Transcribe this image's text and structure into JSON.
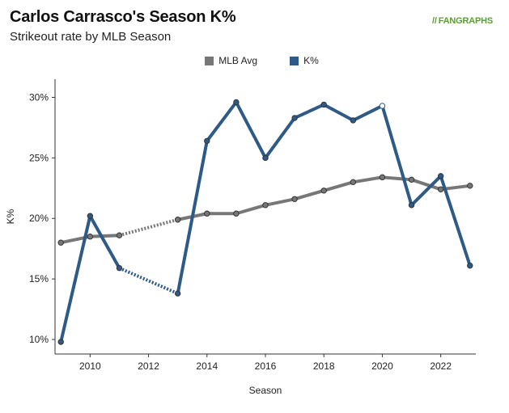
{
  "header": {
    "title": "Carlos Carrasco's Season K%",
    "subtitle": "Strikeout rate by MLB Season",
    "brand_mark": "//",
    "brand_fan": "FAN",
    "brand_graphs": "GRAPHS"
  },
  "colors": {
    "mlb_avg": "#777777",
    "k_pct": "#2e5a87",
    "brand": "#5aa02c",
    "axis": "#333333"
  },
  "chart_data": {
    "type": "line",
    "title": "Carlos Carrasco's Season K%",
    "subtitle": "Strikeout rate by MLB Season",
    "xlabel": "Season",
    "ylabel": "K%",
    "xlim": [
      2008.8,
      2023.2
    ],
    "ylim": [
      8.8,
      31.5
    ],
    "x_ticks": [
      2010,
      2012,
      2014,
      2016,
      2018,
      2020,
      2022
    ],
    "y_ticks": [
      10,
      15,
      20,
      25,
      30
    ],
    "y_tick_labels": [
      "10%",
      "15%",
      "20%",
      "25%",
      "30%"
    ],
    "legend_position": "top-center",
    "grid": false,
    "series": [
      {
        "name": "MLB Avg",
        "color": "#777777",
        "points": [
          {
            "x": 2009,
            "y": 18.0
          },
          {
            "x": 2010,
            "y": 18.5
          },
          {
            "x": 2011,
            "y": 18.6
          },
          {
            "x": 2013,
            "y": 19.9
          },
          {
            "x": 2014,
            "y": 20.4
          },
          {
            "x": 2015,
            "y": 20.4
          },
          {
            "x": 2016,
            "y": 21.1
          },
          {
            "x": 2017,
            "y": 21.6
          },
          {
            "x": 2018,
            "y": 22.3
          },
          {
            "x": 2019,
            "y": 23.0
          },
          {
            "x": 2020,
            "y": 23.4
          },
          {
            "x": 2021,
            "y": 23.2
          },
          {
            "x": 2022,
            "y": 22.4
          },
          {
            "x": 2023,
            "y": 22.7
          }
        ]
      },
      {
        "name": "K%",
        "color": "#2e5a87",
        "points": [
          {
            "x": 2009,
            "y": 9.8
          },
          {
            "x": 2010,
            "y": 20.2
          },
          {
            "x": 2011,
            "y": 15.9
          },
          {
            "x": 2013,
            "y": 13.8
          },
          {
            "x": 2014,
            "y": 26.4
          },
          {
            "x": 2015,
            "y": 29.6
          },
          {
            "x": 2016,
            "y": 25.0
          },
          {
            "x": 2017,
            "y": 28.3
          },
          {
            "x": 2018,
            "y": 29.4
          },
          {
            "x": 2019,
            "y": 28.1
          },
          {
            "x": 2020,
            "y": 29.3
          },
          {
            "x": 2021,
            "y": 21.1
          },
          {
            "x": 2022,
            "y": 23.5
          },
          {
            "x": 2023,
            "y": 16.1
          }
        ]
      }
    ]
  }
}
